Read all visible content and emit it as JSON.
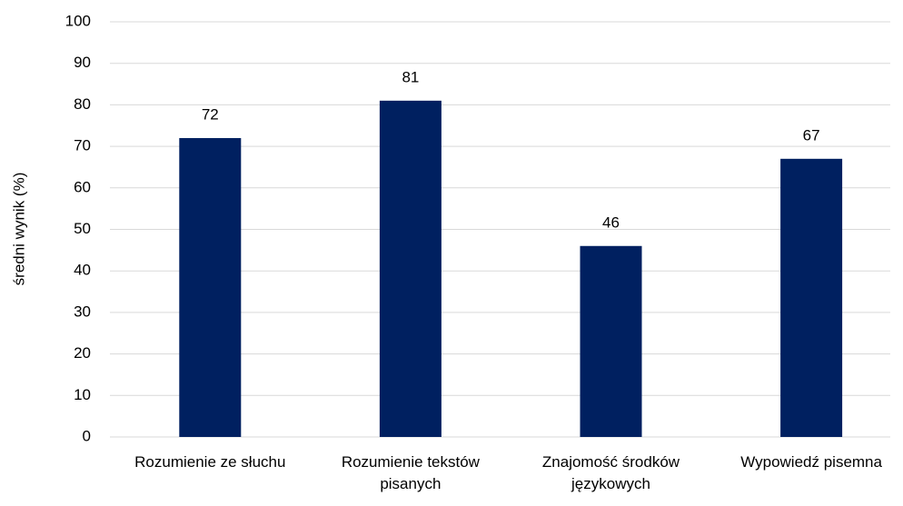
{
  "chart_data": {
    "type": "bar",
    "y_label": "średni wynik (%)",
    "categories": [
      "Rozumienie ze słuchu",
      "Rozumienie tekstów pisanych",
      "Znajomość środków językowych",
      "Wypowiedź pisemna"
    ],
    "values": [
      72,
      81,
      46,
      67
    ],
    "color": "#002060",
    "ylim": [
      0,
      100
    ],
    "yticks": [
      0,
      10,
      20,
      30,
      40,
      50,
      60,
      70,
      80,
      90,
      100
    ],
    "grid": true
  }
}
